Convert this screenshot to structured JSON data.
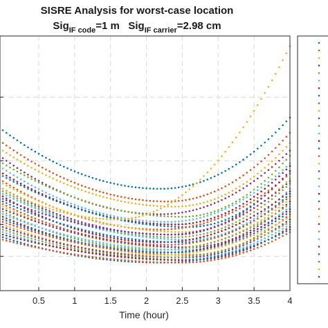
{
  "chart_data": {
    "type": "scatter",
    "title_line1": "SISRE Analysis for worst-case location",
    "title_line2": {
      "part1": "Sig",
      "sub1": "IF code",
      "part2": "=1 m   Sig",
      "sub2": "IF carrier",
      "part3": "=2.98 cm"
    },
    "xlabel": "Time (hour)",
    "ylabel": "",
    "xlim": [
      0,
      4
    ],
    "x_ticks": [
      0.5,
      1,
      1.5,
      2,
      2.5,
      3,
      3.5,
      4
    ],
    "x_tick_labels": [
      "0.5",
      "1",
      "1.5",
      "2",
      "2.5",
      "3",
      "3.5",
      "4"
    ],
    "grid": true,
    "legend": {
      "placement": "right",
      "entry_count": 32
    },
    "series_colors": [
      "#0072BD",
      "#D95319",
      "#EDB120",
      "#7E2F8E",
      "#77AC30",
      "#4DBEEE",
      "#A2142F",
      "#0072BD",
      "#D95319",
      "#EDB120",
      "#7E2F8E",
      "#77AC30",
      "#4DBEEE",
      "#A2142F",
      "#0072BD",
      "#D95319",
      "#EDB120",
      "#7E2F8E",
      "#77AC30",
      "#4DBEEE",
      "#A2142F",
      "#0072BD",
      "#D95319",
      "#EDB120",
      "#7E2F8E",
      "#77AC30",
      "#4DBEEE",
      "#A2142F",
      "#0072BD",
      "#D95319",
      "#EDB120",
      "#7E2F8E"
    ],
    "series_profiles": [
      {
        "start": 0.63,
        "min": 0.4,
        "end": 0.68,
        "min_t": 2.2
      },
      {
        "start": 0.58,
        "min": 0.35,
        "end": 0.62,
        "min_t": 2.3
      },
      {
        "start": 0.55,
        "min": 0.33,
        "end": 0.58,
        "min_t": 2.4
      },
      {
        "start": 0.52,
        "min": 0.3,
        "end": 0.55,
        "min_t": 2.2
      },
      {
        "start": 0.5,
        "min": 0.29,
        "end": 0.53,
        "min_t": 2.5
      },
      {
        "start": 0.48,
        "min": 0.27,
        "end": 0.5,
        "min_t": 2.3
      },
      {
        "start": 0.46,
        "min": 0.26,
        "end": 0.49,
        "min_t": 2.4
      },
      {
        "start": 0.45,
        "min": 0.25,
        "end": 0.47,
        "min_t": 2.6
      },
      {
        "start": 0.43,
        "min": 0.24,
        "end": 0.46,
        "min_t": 2.2
      },
      {
        "start": 0.42,
        "min": 0.23,
        "end": 0.44,
        "min_t": 2.5
      },
      {
        "start": 0.4,
        "min": 0.22,
        "end": 0.43,
        "min_t": 2.3
      },
      {
        "start": 0.39,
        "min": 0.21,
        "end": 0.42,
        "min_t": 2.4
      },
      {
        "start": 0.38,
        "min": 0.2,
        "end": 0.4,
        "min_t": 2.6
      },
      {
        "start": 0.37,
        "min": 0.19,
        "end": 0.39,
        "min_t": 2.2
      },
      {
        "start": 0.35,
        "min": 0.19,
        "end": 0.38,
        "min_t": 2.5
      },
      {
        "start": 0.34,
        "min": 0.18,
        "end": 0.37,
        "min_t": 2.3
      },
      {
        "start": 0.33,
        "min": 0.17,
        "end": 0.36,
        "min_t": 2.4
      },
      {
        "start": 0.32,
        "min": 0.17,
        "end": 0.35,
        "min_t": 2.6
      },
      {
        "start": 0.31,
        "min": 0.16,
        "end": 0.34,
        "min_t": 2.2
      },
      {
        "start": 0.3,
        "min": 0.16,
        "end": 0.33,
        "min_t": 2.5
      },
      {
        "start": 0.29,
        "min": 0.15,
        "end": 0.32,
        "min_t": 2.3
      },
      {
        "start": 0.28,
        "min": 0.15,
        "end": 0.31,
        "min_t": 2.4
      },
      {
        "start": 0.27,
        "min": 0.14,
        "end": 0.3,
        "min_t": 2.6
      },
      {
        "start": 0.26,
        "min": 0.14,
        "end": 0.29,
        "min_t": 2.2
      },
      {
        "start": 0.25,
        "min": 0.13,
        "end": 0.28,
        "min_t": 2.5
      },
      {
        "start": 0.24,
        "min": 0.13,
        "end": 0.27,
        "min_t": 2.3
      },
      {
        "start": 0.23,
        "min": 0.12,
        "end": 0.26,
        "min_t": 2.4
      },
      {
        "start": 0.22,
        "min": 0.12,
        "end": 0.25,
        "min_t": 2.6
      },
      {
        "start": 0.21,
        "min": 0.11,
        "end": 0.24,
        "min_t": 2.2
      },
      {
        "start": 0.2,
        "min": 0.11,
        "end": 0.23,
        "min_t": 2.5
      },
      {
        "start": 0.4,
        "min": 0.28,
        "end": 0.96,
        "min_t": 1.6
      },
      {
        "start": 0.36,
        "min": 0.22,
        "end": 0.47,
        "min_t": 2.4
      }
    ],
    "sample_step_hours": 0.05
  }
}
